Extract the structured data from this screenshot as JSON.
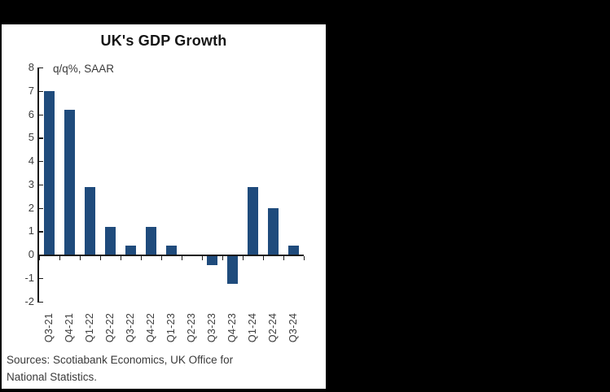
{
  "window": {
    "background_color": "#000000",
    "panel_color": "#ffffff"
  },
  "chart_data": {
    "type": "bar",
    "title": "UK's GDP Growth",
    "annotation": "q/q%, SAAR",
    "categories": [
      "Q3-21",
      "Q4-21",
      "Q1-22",
      "Q2-22",
      "Q3-22",
      "Q4-22",
      "Q1-23",
      "Q2-23",
      "Q3-23",
      "Q4-23",
      "Q1-24",
      "Q2-24",
      "Q3-24"
    ],
    "values": [
      7.0,
      6.2,
      2.9,
      1.2,
      0.4,
      1.2,
      0.4,
      0.0,
      -0.4,
      -1.2,
      2.9,
      2.0,
      0.4
    ],
    "xlabel": "",
    "ylabel": "",
    "ylim": [
      -2,
      8
    ],
    "yticks": [
      8,
      7,
      6,
      5,
      4,
      3,
      2,
      1,
      0,
      -1,
      -2
    ],
    "grid": false,
    "legend_position": "none",
    "bar_color": "#1F4B7C",
    "axis_color": "#1a1a1a",
    "label_color": "#3d3d3d",
    "sources_lines": [
      "Sources: Scotiabank Economics, UK Office for",
      "National Statistics."
    ]
  }
}
